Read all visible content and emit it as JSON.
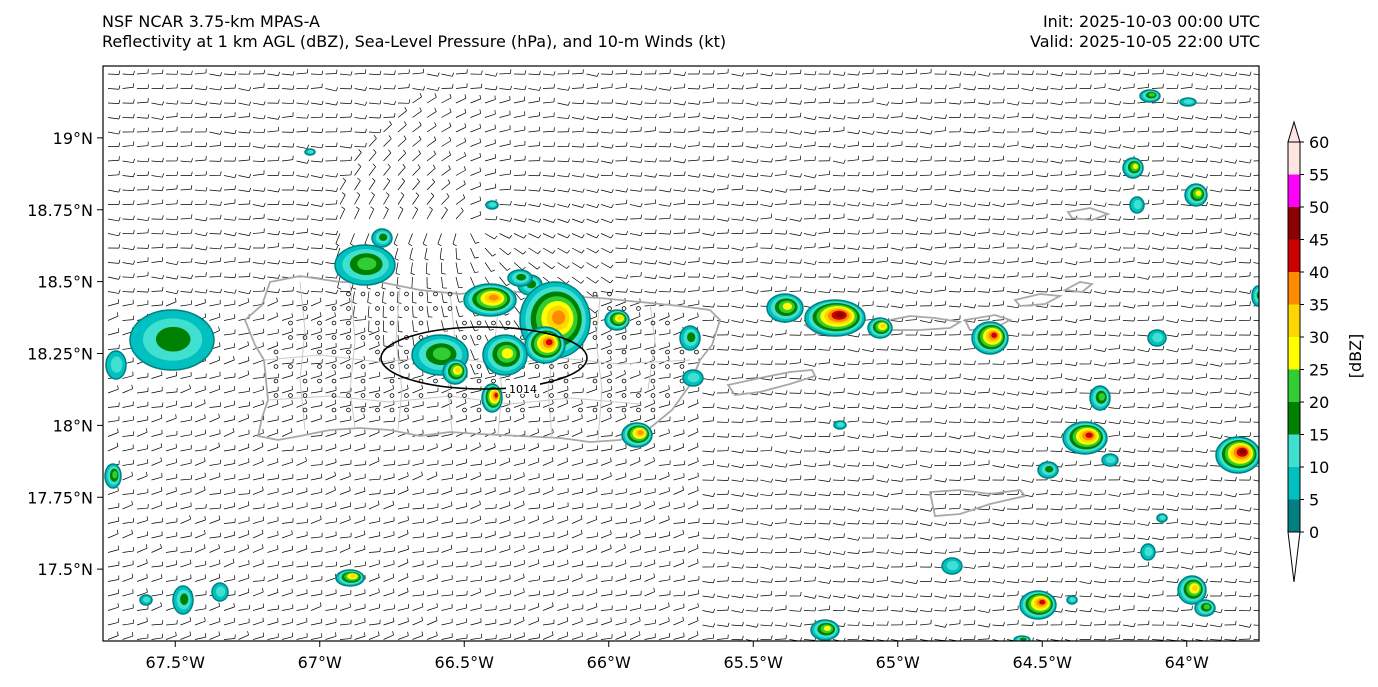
{
  "title": {
    "line1": "NSF NCAR 3.75-km MPAS-A",
    "line2": "Reflectivity at 1 km AGL (dBZ), Sea-Level Pressure (hPa), and 10-m Winds (kt)",
    "init": "Init: 2025-10-03 00:00 UTC",
    "valid": "Valid: 2025-10-05 22:00 UTC"
  },
  "map": {
    "lon_range": [
      -67.75,
      -63.75
    ],
    "lat_range": [
      17.25,
      19.25
    ],
    "lon_ticks": [
      "67.5°W",
      "67°W",
      "66.5°W",
      "66°W",
      "65.5°W",
      "65°W",
      "64.5°W",
      "64°W"
    ],
    "lat_ticks": [
      "19°N",
      "18.75°N",
      "18.5°N",
      "18.25°N",
      "18°N",
      "17.75°N",
      "17.5°N"
    ],
    "coast_color": "#a8a8a8",
    "isobar_label": "1014",
    "wind_barb_color": "#000000"
  },
  "colorbar": {
    "label": "[dBZ]",
    "ticks": [
      "0",
      "5",
      "10",
      "15",
      "20",
      "25",
      "30",
      "35",
      "40",
      "45",
      "50",
      "55",
      "60"
    ],
    "colors": [
      "#008080",
      "#00c0c0",
      "#40e0d0",
      "#008000",
      "#32cd32",
      "#ffff00",
      "#ffd700",
      "#ff8c00",
      "#cc0000",
      "#8b0000",
      "#ff00ff",
      "#ffe4e1"
    ]
  }
}
